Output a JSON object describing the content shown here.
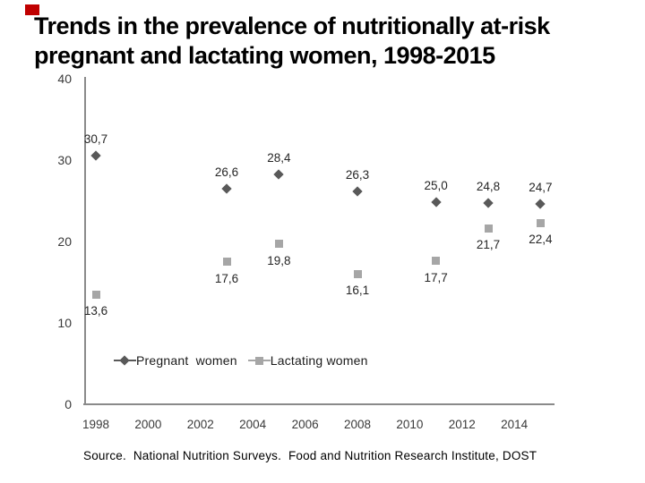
{
  "slide": {
    "title_lines": [
      "Trends in the prevalence of nutritionally at-risk",
      "pregnant and lactating women, 1998-2015"
    ],
    "corner_accent_color": "#c00000",
    "source_text": "Source.  National Nutrition Surveys.  Food and Nutrition Research Institute, DOST"
  },
  "chart_data": {
    "type": "scatter",
    "title": "",
    "xlabel": "",
    "ylabel": "",
    "x": [
      1998,
      2003,
      2005,
      2008,
      2011,
      2013,
      2015
    ],
    "series": [
      {
        "name": "Pregnant women",
        "legend_label": "Pregnant  women",
        "marker": "diamond",
        "color": "#595959",
        "values": [
          30.7,
          26.6,
          28.4,
          26.3,
          25.0,
          24.8,
          24.7
        ],
        "value_labels": [
          "30,7",
          "26,6",
          "28,4",
          "26,3",
          "25,0",
          "24,8",
          "24,7"
        ],
        "label_side": "above"
      },
      {
        "name": "Lactating women",
        "legend_label": "Lactating women",
        "marker": "square",
        "color": "#a6a6a6",
        "values": [
          13.6,
          17.6,
          19.8,
          16.1,
          17.7,
          21.7,
          22.4
        ],
        "value_labels": [
          "13,6",
          "17,6",
          "19,8",
          "16,1",
          "17,7",
          "21,7",
          "22,4"
        ],
        "label_side": "below"
      }
    ],
    "xticks": [
      "1998",
      "2000",
      "2002",
      "2004",
      "2006",
      "2008",
      "2010",
      "2012",
      "2014"
    ],
    "yticks": [
      "40",
      "30",
      "20",
      "10",
      "0"
    ],
    "ylim": [
      0,
      40
    ],
    "xlim": [
      1997.5,
      2015.5
    ],
    "grid": false,
    "legend_position": "bottom-inside",
    "axis_color": "#8a8a8a",
    "text_color": "#262626"
  }
}
